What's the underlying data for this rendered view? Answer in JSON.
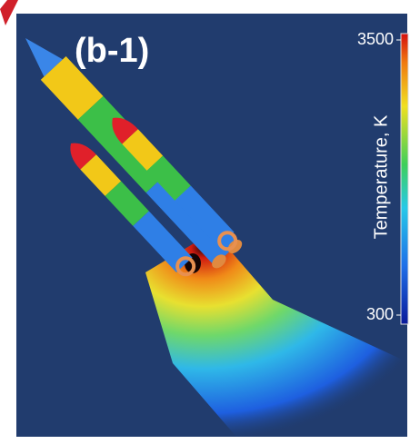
{
  "panel_label": "(b-1)",
  "colorbar": {
    "label": "Temperature, K",
    "lim": [
      300,
      3500
    ],
    "ticks": [
      300,
      3500
    ]
  }
}
